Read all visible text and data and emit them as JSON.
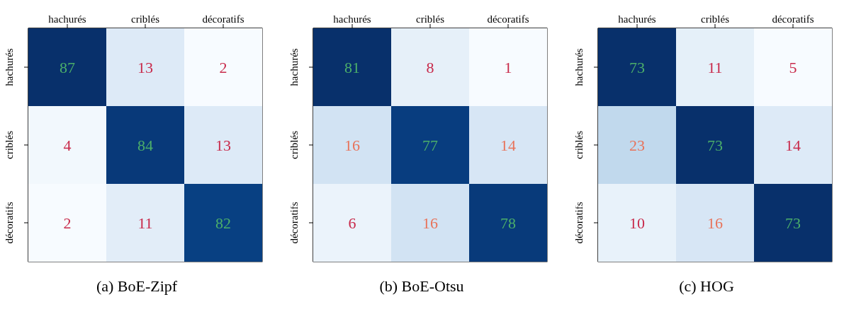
{
  "chart_data": [
    {
      "type": "heatmap",
      "title": "(a) BoE-Zipf",
      "categories": [
        "hachurés",
        "criblés",
        "décoratifs"
      ],
      "y_categories": [
        "hachurés",
        "criblés",
        "décoratifs"
      ],
      "data_labels": true,
      "cells": [
        [
          87,
          13,
          2
        ],
        [
          4,
          84,
          13
        ],
        [
          2,
          11,
          82
        ]
      ]
    },
    {
      "type": "heatmap",
      "title": "(b) BoE-Otsu",
      "categories": [
        "hachurés",
        "criblés",
        "décoratifs"
      ],
      "y_categories": [
        "hachurés",
        "criblés",
        "décoratifs"
      ],
      "data_labels": true,
      "cells": [
        [
          81,
          8,
          1
        ],
        [
          16,
          77,
          14
        ],
        [
          6,
          16,
          78
        ]
      ]
    },
    {
      "type": "heatmap",
      "title": "(c) HOG",
      "categories": [
        "hachurés",
        "criblés",
        "décoratifs"
      ],
      "y_categories": [
        "hachurés",
        "criblés",
        "décoratifs"
      ],
      "data_labels": true,
      "cells": [
        [
          73,
          11,
          5
        ],
        [
          23,
          73,
          14
        ],
        [
          10,
          16,
          73
        ]
      ]
    }
  ]
}
